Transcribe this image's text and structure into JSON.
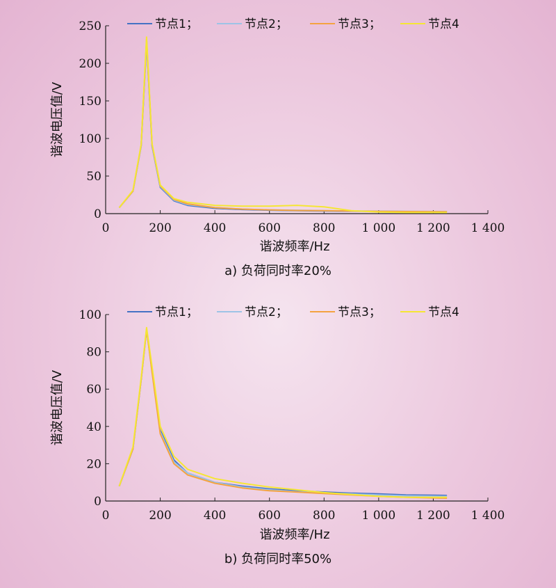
{
  "chart_data": [
    {
      "type": "line",
      "caption": "a) 负荷同时率20%",
      "xlabel": "谐波频率/Hz",
      "ylabel": "谐波电压值/V",
      "xlim": [
        0,
        1400
      ],
      "ylim": [
        0,
        250
      ],
      "xticks": [
        0,
        200,
        400,
        600,
        800,
        1000,
        1200,
        1400
      ],
      "xtick_labels": [
        "0",
        "200",
        "400",
        "600",
        "800",
        "1 000",
        "1 200",
        "1 400"
      ],
      "yticks": [
        0,
        50,
        100,
        150,
        200,
        250
      ],
      "ytick_labels": [
        "0",
        "50",
        "100",
        "150",
        "200",
        "250"
      ],
      "legend_position": "top",
      "series": [
        {
          "name": "节点1；",
          "color": "#4472c4",
          "x": [
            50,
            100,
            130,
            150,
            170,
            200,
            250,
            300,
            400,
            500,
            600,
            700,
            800,
            900,
            1000,
            1100,
            1250
          ],
          "y": [
            8,
            30,
            90,
            228,
            90,
            35,
            17,
            11,
            7,
            5.5,
            4.5,
            4,
            3.5,
            3.2,
            3,
            2.8,
            2.5
          ]
        },
        {
          "name": "节点2；",
          "color": "#9dc3e6",
          "x": [
            50,
            100,
            130,
            150,
            170,
            200,
            250,
            300,
            400,
            500,
            600,
            700,
            800,
            900,
            1000,
            1100,
            1250
          ],
          "y": [
            8,
            30,
            90,
            230,
            91,
            36,
            18,
            12,
            8,
            6,
            5,
            4.5,
            4,
            3.5,
            3.2,
            3,
            2.8
          ]
        },
        {
          "name": "节点3；",
          "color": "#f4a340",
          "x": [
            50,
            100,
            130,
            150,
            170,
            200,
            250,
            300,
            400,
            500,
            600,
            700,
            800,
            900,
            1000,
            1100,
            1250
          ],
          "y": [
            8,
            30,
            91,
            232,
            92,
            37,
            19,
            13,
            8,
            6,
            5,
            4.2,
            4,
            3.5,
            3,
            2.8,
            2.5
          ]
        },
        {
          "name": "节点4",
          "color": "#f5e634",
          "x": [
            50,
            100,
            130,
            150,
            170,
            200,
            250,
            300,
            400,
            500,
            600,
            700,
            800,
            900,
            1000,
            1100,
            1250
          ],
          "y": [
            8,
            31,
            92,
            235,
            93,
            38,
            20,
            15,
            11,
            10,
            10,
            11,
            9,
            4,
            2,
            1.5,
            1.5
          ]
        }
      ]
    },
    {
      "type": "line",
      "caption": "b) 负荷同时率50%",
      "xlabel": "谐波频率/Hz",
      "ylabel": "谐波电压值/V",
      "xlim": [
        0,
        1400
      ],
      "ylim": [
        0,
        100
      ],
      "xticks": [
        0,
        200,
        400,
        600,
        800,
        1000,
        1200,
        1400
      ],
      "xtick_labels": [
        "0",
        "200",
        "400",
        "600",
        "800",
        "1 000",
        "1 200",
        "1 400"
      ],
      "yticks": [
        0,
        20,
        40,
        60,
        80,
        100
      ],
      "ytick_labels": [
        "0",
        "20",
        "40",
        "60",
        "80",
        "100"
      ],
      "legend_position": "top",
      "series": [
        {
          "name": "节点1；",
          "color": "#4472c4",
          "x": [
            50,
            100,
            130,
            150,
            170,
            200,
            250,
            300,
            400,
            500,
            600,
            700,
            800,
            900,
            1000,
            1100,
            1250
          ],
          "y": [
            8,
            28,
            65,
            92,
            70,
            38,
            22,
            15,
            10,
            8,
            6.5,
            5.5,
            4.8,
            4.2,
            3.8,
            3.3,
            3
          ]
        },
        {
          "name": "节点2；",
          "color": "#9dc3e6",
          "x": [
            50,
            100,
            130,
            150,
            170,
            200,
            250,
            300,
            400,
            500,
            600,
            700,
            800,
            900,
            1000,
            1100,
            1250
          ],
          "y": [
            8,
            28,
            65,
            92,
            70,
            37,
            21,
            15,
            10,
            7.5,
            6,
            5,
            4.3,
            3.8,
            3.3,
            2.8,
            2.5
          ]
        },
        {
          "name": "节点3；",
          "color": "#f4a340",
          "x": [
            50,
            100,
            130,
            150,
            170,
            200,
            250,
            300,
            400,
            500,
            600,
            700,
            800,
            900,
            1000,
            1100,
            1250
          ],
          "y": [
            8,
            28,
            65,
            92,
            69,
            36,
            20,
            14,
            9.5,
            7,
            5.5,
            4.8,
            4,
            3.3,
            2.5,
            2,
            1.5
          ]
        },
        {
          "name": "节点4",
          "color": "#f5e634",
          "x": [
            50,
            100,
            130,
            150,
            170,
            200,
            250,
            300,
            400,
            500,
            600,
            700,
            800,
            900,
            1000,
            1100,
            1250
          ],
          "y": [
            8,
            29,
            66,
            93,
            72,
            40,
            24,
            17,
            12,
            9.5,
            7.5,
            6,
            4.5,
            3.5,
            2.5,
            2,
            2
          ]
        }
      ]
    }
  ]
}
